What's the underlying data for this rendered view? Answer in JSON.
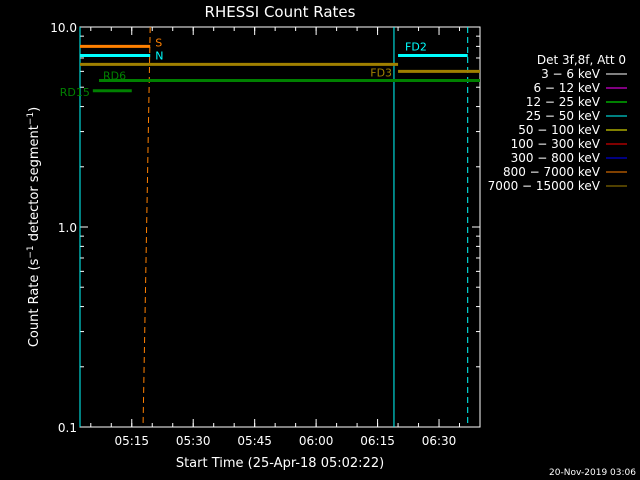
{
  "chart_data": {
    "type": "line",
    "title": "RHESSI Count Rates",
    "xlabel": "Start Time (25-Apr-18 05:02:22)",
    "ylabel_main": "Count Rate (s",
    "ylabel_sup1": "−1",
    "ylabel_mid": " detector segment",
    "ylabel_sup2": "−1",
    "ylabel_end": ")",
    "y_scale": "log",
    "ylim": [
      0.1,
      10.0
    ],
    "xlim": [
      "05:02:22",
      "06:40:00"
    ],
    "x_ticks": [
      "05:15",
      "05:30",
      "05:45",
      "06:00",
      "06:15",
      "06:30"
    ],
    "y_ticks": [
      "10.0",
      "1.0",
      "0.1"
    ],
    "legend": {
      "header": "Det 3f,8f, Att 0",
      "placement": "right",
      "entries": [
        {
          "label": "3 − 6 keV",
          "color": "#ffffff"
        },
        {
          "label": "6 − 12 keV",
          "color": "#ff00ff"
        },
        {
          "label": "12 − 25 keV",
          "color": "#00ff00"
        },
        {
          "label": "25 − 50 keV",
          "color": "#00ffff"
        },
        {
          "label": "50 − 100 keV",
          "color": "#ffff00"
        },
        {
          "label": "100 − 300 keV",
          "color": "#ff0000"
        },
        {
          "label": "300 − 800 keV",
          "color": "#0000ff"
        },
        {
          "label": "800 − 7000 keV",
          "color": "#ff8000"
        },
        {
          "label": "7000 − 15000 keV",
          "color": "#a08000"
        }
      ]
    },
    "flag_bars": [
      {
        "label": "S",
        "color": "#ff8000",
        "y": 8.0,
        "x_start": "05:02:22",
        "x_end": "05:19:30"
      },
      {
        "label": "N",
        "color": "#00ffff",
        "y": 7.2,
        "x_start": "05:02:22",
        "x_end": "05:19:30"
      },
      {
        "label": "FD2",
        "color": "#00ffff",
        "y": 7.2,
        "x_start": "06:20:00",
        "x_end": "06:37:00"
      },
      {
        "label": "",
        "color": "#a08000",
        "y": 6.5,
        "x_start": "05:02:22",
        "x_end": "06:20:00"
      },
      {
        "label": "FD3",
        "color": "#a08000",
        "y": 6.0,
        "x_start": "06:20:00",
        "x_end": "06:40:00"
      },
      {
        "label": "RD6",
        "color": "#008000",
        "y": 5.4,
        "x_start": "05:07:00",
        "x_end": "06:40:00"
      },
      {
        "label": "RD15",
        "color": "#008000",
        "y": 4.8,
        "x_start": "05:05:30",
        "x_end": "05:15:00"
      }
    ],
    "vertical_lines": [
      {
        "x": "05:02:22",
        "color": "#00ffff",
        "style": "solid"
      },
      {
        "x": "05:19:30",
        "color": "#ff8000",
        "style": "dashed",
        "angle_end": "05:17:45"
      },
      {
        "x": "06:19:00",
        "color": "#00ffff",
        "style": "solid"
      },
      {
        "x": "06:37:00",
        "color": "#00ffff",
        "style": "dashed"
      }
    ]
  },
  "footer_timestamp": "20-Nov-2019 03:06"
}
